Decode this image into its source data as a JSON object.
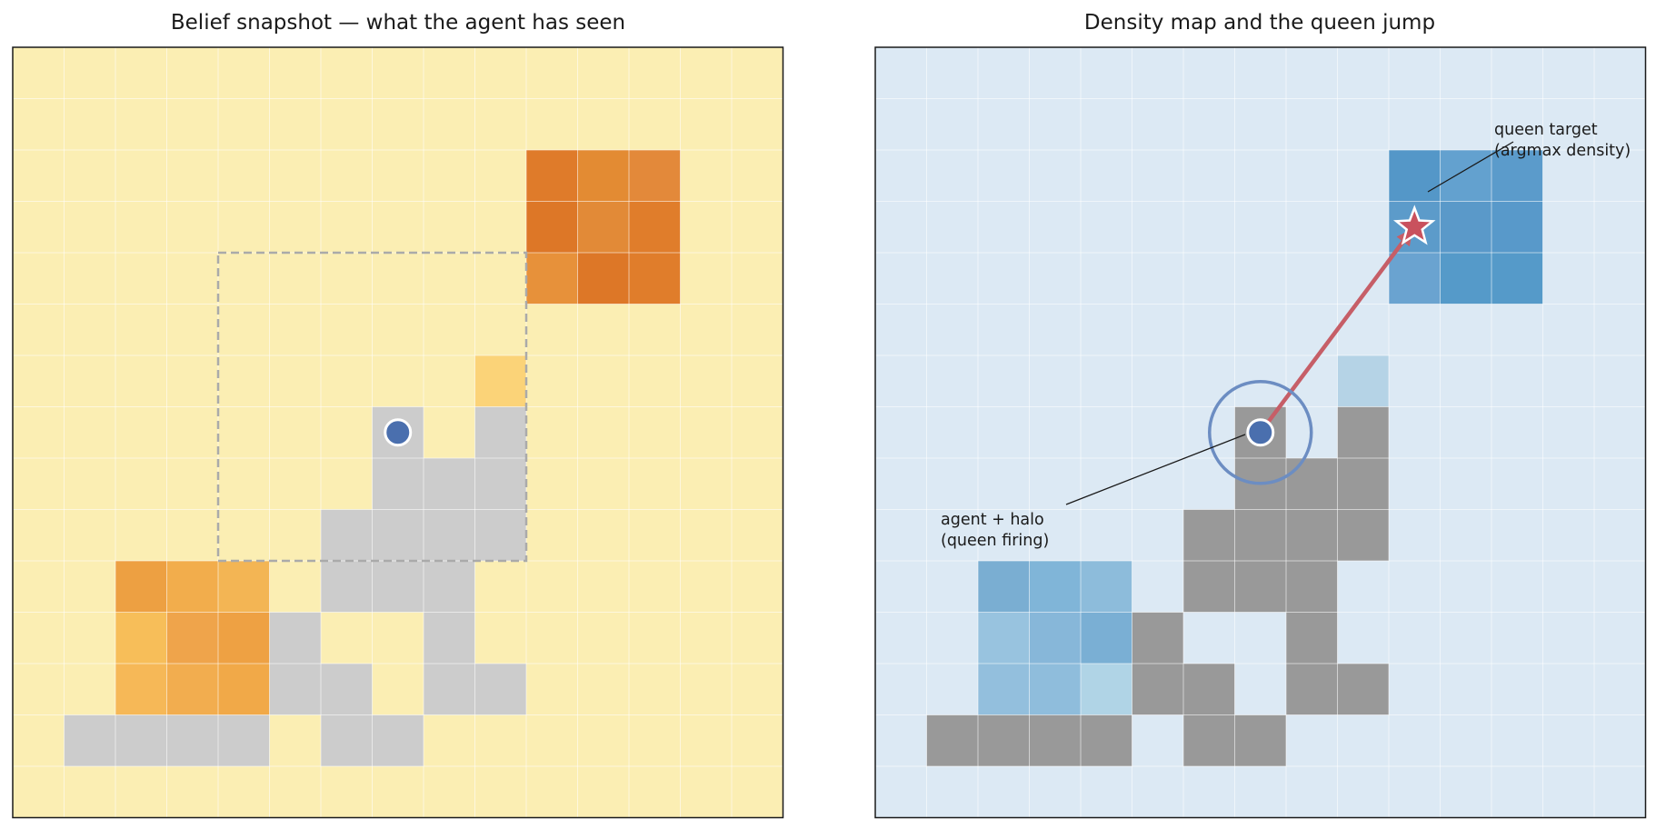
{
  "left_panel": {
    "title": "Belief snapshot — what the agent has seen",
    "grid_size": 15,
    "background_color": "#fbeeb3",
    "obstacle_color": "#cccccc",
    "agent": {
      "col": 7,
      "row": 7,
      "color": "#4a6fae"
    },
    "window": {
      "col0": 4,
      "row0": 4,
      "col1": 11,
      "row1": 11
    },
    "seen_cells": [
      {
        "col": 10,
        "row": 2,
        "color": "#df7b2a"
      },
      {
        "col": 11,
        "row": 2,
        "color": "#e38b33"
      },
      {
        "col": 12,
        "row": 2,
        "color": "#e3893a"
      },
      {
        "col": 10,
        "row": 3,
        "color": "#dd7727"
      },
      {
        "col": 11,
        "row": 3,
        "color": "#e28a37"
      },
      {
        "col": 12,
        "row": 3,
        "color": "#e07d2b"
      },
      {
        "col": 10,
        "row": 4,
        "color": "#e7913a"
      },
      {
        "col": 11,
        "row": 4,
        "color": "#dd7727"
      },
      {
        "col": 12,
        "row": 4,
        "color": "#e07d2b"
      },
      {
        "col": 9,
        "row": 6,
        "color": "#fbd378"
      },
      {
        "col": 2,
        "row": 10,
        "color": "#eda042"
      },
      {
        "col": 3,
        "row": 10,
        "color": "#f2ad4c"
      },
      {
        "col": 4,
        "row": 10,
        "color": "#f3b554"
      },
      {
        "col": 2,
        "row": 11,
        "color": "#f7be59"
      },
      {
        "col": 3,
        "row": 11,
        "color": "#efa44b"
      },
      {
        "col": 4,
        "row": 11,
        "color": "#eea143"
      },
      {
        "col": 2,
        "row": 12,
        "color": "#f6b857"
      },
      {
        "col": 3,
        "row": 12,
        "color": "#f2ad4f"
      },
      {
        "col": 4,
        "row": 12,
        "color": "#f1a948"
      }
    ]
  },
  "right_panel": {
    "title": "Density map and the queen jump",
    "grid_size": 15,
    "background_color": "#dce9f4",
    "obstacle_color": "#999999",
    "agent": {
      "col": 7,
      "row": 7,
      "color": "#4a6fae",
      "halo_color": "#6c8dc2"
    },
    "queen_target": {
      "col": 10,
      "row": 3,
      "color": "#c9515d"
    },
    "arrow_color": "#c65e67",
    "density_cells": [
      {
        "col": 10,
        "row": 2,
        "color": "#5497c8"
      },
      {
        "col": 11,
        "row": 2,
        "color": "#63a1cf"
      },
      {
        "col": 12,
        "row": 2,
        "color": "#5b9bcb"
      },
      {
        "col": 10,
        "row": 3,
        "color": "#5c9bca"
      },
      {
        "col": 11,
        "row": 3,
        "color": "#5a99c9"
      },
      {
        "col": 12,
        "row": 3,
        "color": "#5899ca"
      },
      {
        "col": 10,
        "row": 4,
        "color": "#6aa3d0"
      },
      {
        "col": 11,
        "row": 4,
        "color": "#559ac9"
      },
      {
        "col": 12,
        "row": 4,
        "color": "#559ac9"
      },
      {
        "col": 9,
        "row": 6,
        "color": "#b5d3e6"
      },
      {
        "col": 2,
        "row": 10,
        "color": "#7aaed2"
      },
      {
        "col": 3,
        "row": 10,
        "color": "#80b5d8"
      },
      {
        "col": 4,
        "row": 10,
        "color": "#8dbcdb"
      },
      {
        "col": 2,
        "row": 11,
        "color": "#98c3df"
      },
      {
        "col": 3,
        "row": 11,
        "color": "#87b7d9"
      },
      {
        "col": 4,
        "row": 11,
        "color": "#7aafd4"
      },
      {
        "col": 2,
        "row": 12,
        "color": "#93bfdd"
      },
      {
        "col": 3,
        "row": 12,
        "color": "#8fbddc"
      },
      {
        "col": 4,
        "row": 12,
        "color": "#b0d4e6"
      }
    ],
    "annotations": {
      "agent_label_line1": "agent + halo",
      "agent_label_line2": "(queen firing)",
      "target_label_line1": "queen target",
      "target_label_line2": "(argmax density)"
    }
  },
  "obstacles": [
    {
      "col": 7,
      "row": 7
    },
    {
      "col": 9,
      "row": 7
    },
    {
      "col": 7,
      "row": 8
    },
    {
      "col": 8,
      "row": 8
    },
    {
      "col": 9,
      "row": 8
    },
    {
      "col": 6,
      "row": 9
    },
    {
      "col": 7,
      "row": 9
    },
    {
      "col": 8,
      "row": 9
    },
    {
      "col": 9,
      "row": 9
    },
    {
      "col": 6,
      "row": 10
    },
    {
      "col": 7,
      "row": 10
    },
    {
      "col": 8,
      "row": 10
    },
    {
      "col": 5,
      "row": 11
    },
    {
      "col": 8,
      "row": 11
    },
    {
      "col": 5,
      "row": 12
    },
    {
      "col": 6,
      "row": 12
    },
    {
      "col": 8,
      "row": 12
    },
    {
      "col": 9,
      "row": 12
    },
    {
      "col": 1,
      "row": 13
    },
    {
      "col": 2,
      "row": 13
    },
    {
      "col": 3,
      "row": 13
    },
    {
      "col": 4,
      "row": 13
    },
    {
      "col": 6,
      "row": 13
    },
    {
      "col": 7,
      "row": 13
    }
  ]
}
